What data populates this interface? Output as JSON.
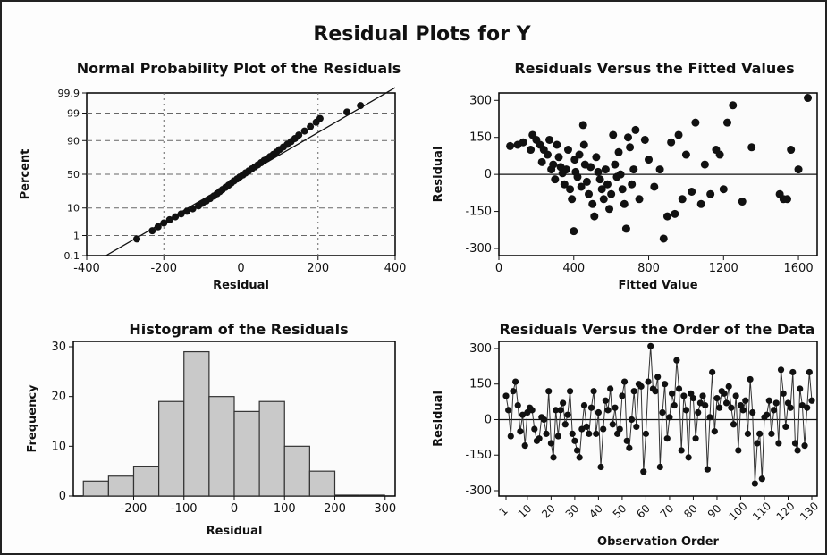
{
  "page": {
    "main_title": "Residual Plots for Y",
    "colors": {
      "ink": "#111111",
      "panel_border": "#000000",
      "bar_fill": "#c9c9c9",
      "grid": "#666666"
    }
  },
  "chart_data": [
    {
      "id": "normal-probability-plot",
      "type": "scatter",
      "title": "Normal Probability Plot of the Residuals",
      "xlabel": "Residual",
      "ylabel": "Percent",
      "xlim": [
        -400,
        400
      ],
      "x_ticks": [
        -400,
        -200,
        0,
        200,
        400
      ],
      "y_scale": "normal-probability",
      "y_ticks": [
        0.1,
        1,
        10,
        50,
        90,
        99,
        99.9
      ],
      "y_tick_labels": [
        "0.1",
        "1",
        "10",
        "50",
        "90",
        "99",
        "99.9"
      ],
      "grid": "dashed, at y ticks and x ticks",
      "fit_line": {
        "x": [
          -350,
          400
        ],
        "y": [
          0.1,
          99.95
        ]
      },
      "points": [
        [
          -270,
          0.7
        ],
        [
          -230,
          1.6
        ],
        [
          -215,
          2.3
        ],
        [
          -200,
          3.2
        ],
        [
          -185,
          4.2
        ],
        [
          -170,
          5.3
        ],
        [
          -155,
          6.6
        ],
        [
          -140,
          8.0
        ],
        [
          -125,
          9.5
        ],
        [
          -110,
          11.5
        ],
        [
          -100,
          13.5
        ],
        [
          -90,
          15.5
        ],
        [
          -80,
          17.8
        ],
        [
          -70,
          20.5
        ],
        [
          -62,
          23
        ],
        [
          -55,
          25.5
        ],
        [
          -48,
          28
        ],
        [
          -40,
          31
        ],
        [
          -32,
          34
        ],
        [
          -25,
          37
        ],
        [
          -18,
          40
        ],
        [
          -10,
          43
        ],
        [
          -3,
          46
        ],
        [
          5,
          49
        ],
        [
          12,
          52
        ],
        [
          20,
          55
        ],
        [
          28,
          58
        ],
        [
          36,
          61
        ],
        [
          44,
          64
        ],
        [
          52,
          67
        ],
        [
          60,
          70
        ],
        [
          68,
          72.5
        ],
        [
          76,
          75
        ],
        [
          84,
          77.5
        ],
        [
          92,
          80
        ],
        [
          100,
          82.5
        ],
        [
          110,
          85
        ],
        [
          120,
          87.2
        ],
        [
          130,
          89.3
        ],
        [
          140,
          91.3
        ],
        [
          150,
          93.2
        ],
        [
          165,
          95
        ],
        [
          180,
          96.5
        ],
        [
          195,
          97.6
        ],
        [
          205,
          98.3
        ],
        [
          275,
          99.1
        ],
        [
          310,
          99.55
        ]
      ]
    },
    {
      "id": "residuals-vs-fitted",
      "type": "scatter",
      "title": "Residuals Versus the Fitted Values",
      "xlabel": "Fitted Value",
      "ylabel": "Residual",
      "xlim": [
        0,
        1700
      ],
      "ylim": [
        -300,
        330
      ],
      "x_ticks": [
        0,
        400,
        800,
        1200,
        1600
      ],
      "y_ticks": [
        -300,
        -150,
        0,
        150,
        300
      ],
      "reference_line_y": 0,
      "points": [
        [
          60,
          115
        ],
        [
          100,
          120
        ],
        [
          130,
          130
        ],
        [
          170,
          100
        ],
        [
          180,
          160
        ],
        [
          200,
          140
        ],
        [
          220,
          120
        ],
        [
          230,
          50
        ],
        [
          240,
          100
        ],
        [
          260,
          80
        ],
        [
          270,
          140
        ],
        [
          280,
          20
        ],
        [
          290,
          40
        ],
        [
          300,
          -20
        ],
        [
          310,
          120
        ],
        [
          320,
          70
        ],
        [
          330,
          30
        ],
        [
          340,
          5
        ],
        [
          350,
          -40
        ],
        [
          360,
          20
        ],
        [
          370,
          100
        ],
        [
          380,
          -60
        ],
        [
          390,
          -100
        ],
        [
          400,
          -230
        ],
        [
          405,
          60
        ],
        [
          410,
          10
        ],
        [
          420,
          -10
        ],
        [
          430,
          80
        ],
        [
          440,
          -50
        ],
        [
          450,
          200
        ],
        [
          455,
          120
        ],
        [
          460,
          40
        ],
        [
          470,
          -30
        ],
        [
          480,
          -80
        ],
        [
          490,
          30
        ],
        [
          500,
          -120
        ],
        [
          510,
          -170
        ],
        [
          520,
          70
        ],
        [
          530,
          10
        ],
        [
          540,
          -20
        ],
        [
          550,
          -60
        ],
        [
          560,
          -100
        ],
        [
          570,
          20
        ],
        [
          580,
          -40
        ],
        [
          590,
          -140
        ],
        [
          600,
          -80
        ],
        [
          610,
          160
        ],
        [
          620,
          40
        ],
        [
          630,
          -10
        ],
        [
          640,
          90
        ],
        [
          650,
          0
        ],
        [
          660,
          -60
        ],
        [
          670,
          -120
        ],
        [
          680,
          -220
        ],
        [
          690,
          150
        ],
        [
          700,
          110
        ],
        [
          710,
          -40
        ],
        [
          720,
          20
        ],
        [
          730,
          180
        ],
        [
          750,
          -100
        ],
        [
          780,
          140
        ],
        [
          800,
          60
        ],
        [
          830,
          -50
        ],
        [
          860,
          20
        ],
        [
          880,
          -260
        ],
        [
          900,
          -170
        ],
        [
          920,
          130
        ],
        [
          940,
          -160
        ],
        [
          960,
          160
        ],
        [
          980,
          -100
        ],
        [
          1000,
          80
        ],
        [
          1030,
          -70
        ],
        [
          1050,
          210
        ],
        [
          1080,
          -120
        ],
        [
          1100,
          40
        ],
        [
          1130,
          -80
        ],
        [
          1160,
          100
        ],
        [
          1180,
          80
        ],
        [
          1200,
          -60
        ],
        [
          1220,
          210
        ],
        [
          1250,
          280
        ],
        [
          1300,
          -110
        ],
        [
          1350,
          110
        ],
        [
          1500,
          -80
        ],
        [
          1520,
          -100
        ],
        [
          1540,
          -100
        ],
        [
          1560,
          100
        ],
        [
          1600,
          20
        ],
        [
          1650,
          310
        ]
      ]
    },
    {
      "id": "histogram",
      "type": "bar",
      "title": "Histogram of the Residuals",
      "xlabel": "Residual",
      "ylabel": "Frequency",
      "ylim": [
        0,
        30
      ],
      "y_ticks": [
        0,
        10,
        20,
        30
      ],
      "x_ticks": [
        -200,
        -100,
        0,
        100,
        200,
        300
      ],
      "bin_edges": [
        -300,
        -250,
        -200,
        -150,
        -100,
        -50,
        0,
        50,
        100,
        150,
        200,
        250,
        300
      ],
      "values": [
        3,
        4,
        6,
        19,
        29,
        20,
        17,
        19,
        10,
        5,
        0,
        0
      ]
    },
    {
      "id": "residuals-vs-order",
      "type": "line",
      "title": "Residuals Versus the Order of the Data",
      "xlabel": "Observation Order",
      "ylabel": "Residual",
      "ylim": [
        -300,
        330
      ],
      "y_ticks": [
        -300,
        -150,
        0,
        150,
        300
      ],
      "x_ticks": [
        1,
        10,
        20,
        30,
        40,
        50,
        60,
        70,
        80,
        90,
        100,
        110,
        120,
        130
      ],
      "reference_line_y": 0,
      "values": [
        100,
        40,
        -70,
        120,
        160,
        60,
        -50,
        20,
        -110,
        30,
        50,
        40,
        -40,
        -90,
        -80,
        10,
        0,
        -60,
        120,
        -100,
        -160,
        40,
        -70,
        40,
        70,
        -20,
        20,
        120,
        -60,
        -90,
        -130,
        -160,
        -40,
        60,
        -30,
        -60,
        50,
        120,
        -60,
        30,
        -200,
        -40,
        80,
        40,
        130,
        -20,
        50,
        -60,
        -40,
        100,
        160,
        -90,
        -120,
        0,
        120,
        -30,
        150,
        140,
        -220,
        -60,
        160,
        310,
        130,
        120,
        180,
        -200,
        30,
        150,
        -80,
        10,
        110,
        60,
        250,
        130,
        -130,
        100,
        40,
        -160,
        110,
        90,
        -80,
        30,
        70,
        100,
        60,
        -210,
        10,
        200,
        -50,
        90,
        50,
        120,
        110,
        70,
        140,
        50,
        -20,
        100,
        -130,
        60,
        40,
        80,
        -60,
        170,
        30,
        -270,
        -100,
        -60,
        -250,
        10,
        20,
        80,
        -60,
        40,
        70,
        -100,
        210,
        110,
        -30,
        70,
        50,
        200,
        -100,
        -130,
        130,
        60,
        -110,
        50,
        200,
        80
      ]
    }
  ]
}
